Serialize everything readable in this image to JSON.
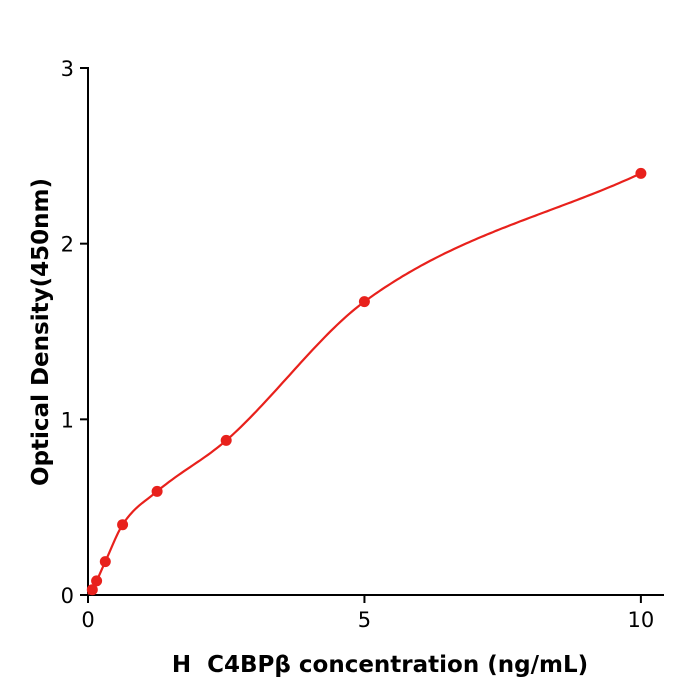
{
  "chart_data": {
    "type": "scatter",
    "title": "",
    "xlabel": "H  C4BPβ concentration (ng/mL)",
    "ylabel": "Optical Density(450nm)",
    "x": [
      0.078,
      0.156,
      0.313,
      0.625,
      1.25,
      2.5,
      5,
      10
    ],
    "y": [
      0.03,
      0.08,
      0.19,
      0.4,
      0.59,
      0.88,
      1.67,
      2.4
    ],
    "curve_anchor_x": 0,
    "curve_anchor_y": 0.005,
    "xlim": [
      0,
      10.4
    ],
    "ylim": [
      0,
      3
    ],
    "xticks": [
      0,
      5,
      10
    ],
    "yticks": [
      0,
      1,
      2,
      3
    ],
    "point_color": "#e8211c",
    "line_color": "#e8211c",
    "axis_color": "#000000",
    "background": "#ffffff",
    "grid": false,
    "legend": "none"
  }
}
